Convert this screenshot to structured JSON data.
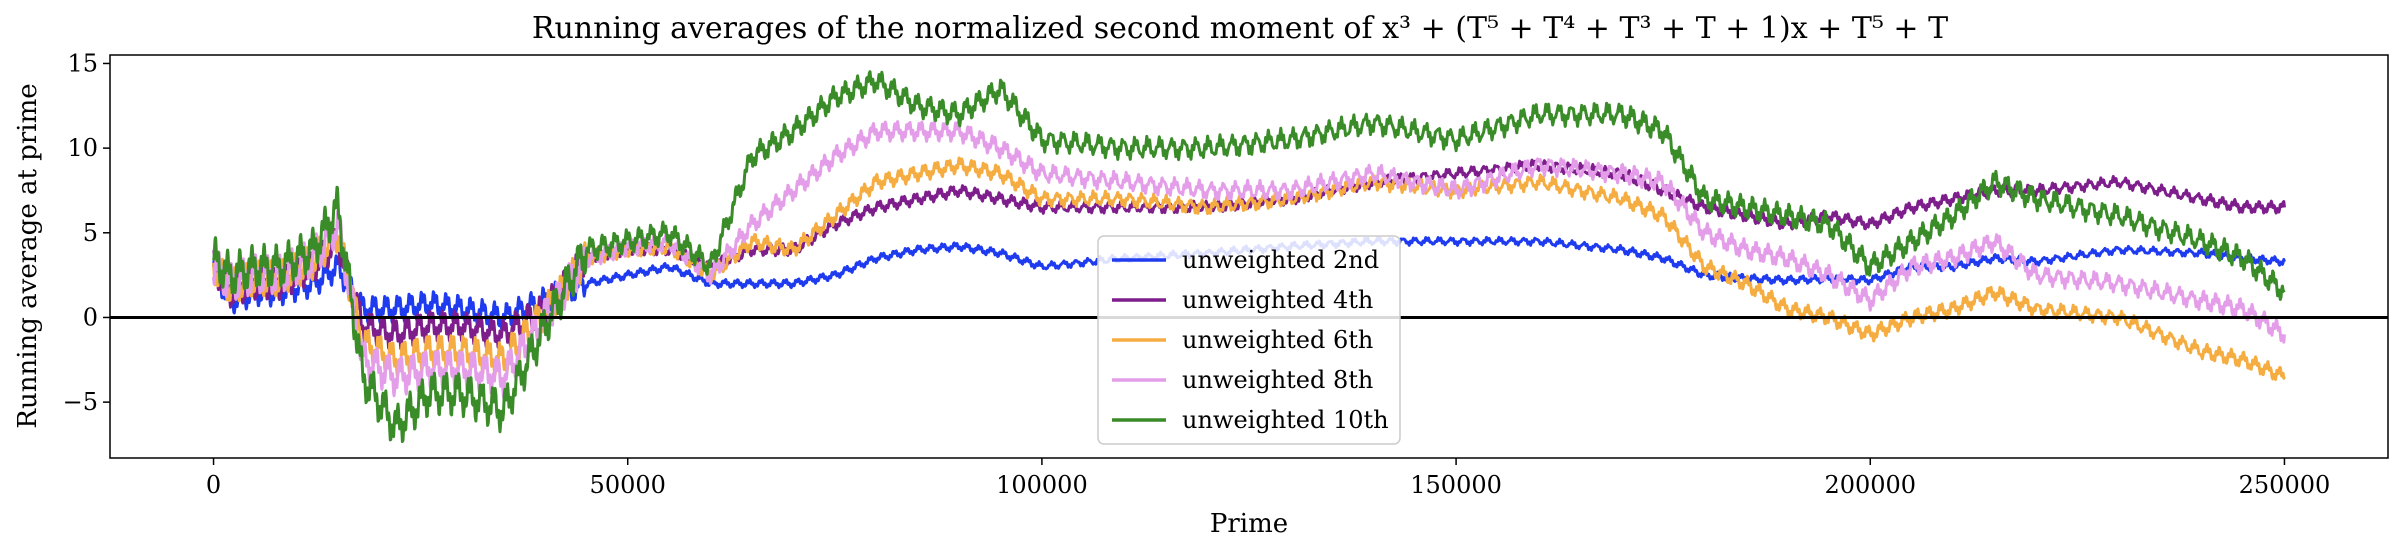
{
  "chart_data": {
    "type": "line",
    "title": "Running averages of the normalized second moment of x³ + (T⁵ + T⁴ + T³ + T + 1)x + T⁵ + T",
    "xlabel": "Prime",
    "ylabel": "Running average at prime",
    "xlim": [
      -12500,
      262500
    ],
    "ylim": [
      -8.3,
      15.5
    ],
    "xticks": [
      0,
      50000,
      100000,
      150000,
      200000,
      250000
    ],
    "xtick_labels": [
      "0",
      "50000",
      "100000",
      "150000",
      "200000",
      "250000"
    ],
    "yticks": [
      -5,
      0,
      5,
      10,
      15
    ],
    "ytick_labels": [
      "−5",
      "0",
      "5",
      "10",
      "15"
    ],
    "hline": 0,
    "legend_position": "center",
    "x": [
      0,
      2000,
      5000,
      8000,
      12000,
      15000,
      18000,
      22000,
      26000,
      30000,
      35000,
      40000,
      45000,
      50000,
      55000,
      60000,
      65000,
      70000,
      75000,
      80000,
      85000,
      90000,
      95000,
      100000,
      110000,
      120000,
      130000,
      140000,
      150000,
      160000,
      170000,
      175000,
      180000,
      185000,
      190000,
      195000,
      200000,
      205000,
      210000,
      215000,
      220000,
      230000,
      240000,
      245000,
      250000
    ],
    "series": [
      {
        "name": "unweighted 2nd",
        "color": "#1f3bef",
        "values": [
          3.0,
          1.0,
          1.5,
          1.5,
          2.0,
          3.0,
          0.5,
          0.5,
          0.8,
          0.5,
          0.0,
          1.0,
          2.0,
          2.5,
          3.0,
          2.0,
          2.0,
          2.0,
          2.5,
          3.5,
          4.0,
          4.2,
          3.8,
          3.0,
          3.5,
          3.8,
          4.2,
          4.5,
          4.5,
          4.5,
          4.0,
          3.5,
          2.5,
          2.3,
          2.2,
          2.3,
          2.2,
          3.0,
          3.0,
          3.5,
          3.3,
          4.0,
          3.8,
          3.5,
          3.3
        ]
      },
      {
        "name": "unweighted 4th",
        "color": "#7e1e8c",
        "values": [
          3.0,
          1.5,
          2.0,
          2.0,
          3.0,
          4.5,
          -0.5,
          -1.0,
          -0.5,
          -0.5,
          -1.0,
          0.5,
          3.5,
          4.0,
          4.0,
          3.0,
          4.0,
          4.0,
          5.5,
          6.5,
          7.0,
          7.5,
          7.0,
          6.5,
          6.5,
          6.5,
          7.0,
          8.0,
          8.5,
          9.0,
          8.5,
          7.5,
          6.5,
          6.0,
          5.5,
          6.0,
          5.5,
          6.5,
          7.0,
          7.5,
          7.5,
          8.0,
          7.0,
          6.5,
          6.5
        ]
      },
      {
        "name": "unweighted 6th",
        "color": "#f5ac40",
        "values": [
          3.0,
          1.8,
          2.3,
          2.3,
          3.3,
          5.0,
          -1.5,
          -2.5,
          -2.0,
          -2.0,
          -2.5,
          0.3,
          3.5,
          4.0,
          4.2,
          2.5,
          4.5,
          4.0,
          6.0,
          8.0,
          8.5,
          9.0,
          8.5,
          7.0,
          7.0,
          6.5,
          7.0,
          8.0,
          7.5,
          8.0,
          7.0,
          6.0,
          3.0,
          2.0,
          0.5,
          0.0,
          -1.0,
          0.0,
          0.5,
          1.5,
          0.5,
          0.0,
          -2.0,
          -2.5,
          -3.5
        ]
      },
      {
        "name": "unweighted 8th",
        "color": "#e49ee9",
        "values": [
          3.0,
          2.0,
          2.5,
          2.5,
          3.5,
          5.5,
          -2.5,
          -3.5,
          -3.0,
          -3.0,
          -3.5,
          0.0,
          3.5,
          4.2,
          4.5,
          2.5,
          5.5,
          7.5,
          9.5,
          11.0,
          11.0,
          11.0,
          10.0,
          8.5,
          8.0,
          7.5,
          7.5,
          8.5,
          7.5,
          9.0,
          8.5,
          8.0,
          5.0,
          4.0,
          3.5,
          2.5,
          1.0,
          3.0,
          3.5,
          4.5,
          2.5,
          2.0,
          1.0,
          0.5,
          -1.0
        ]
      },
      {
        "name": "unweighted 10th",
        "color": "#3a8c28",
        "values": [
          3.5,
          2.5,
          3.0,
          3.0,
          4.0,
          6.5,
          -3.5,
          -6.5,
          -4.5,
          -4.5,
          -5.5,
          -0.5,
          4.0,
          4.5,
          5.0,
          3.0,
          9.5,
          11.0,
          13.0,
          14.0,
          12.5,
          12.0,
          13.5,
          10.5,
          10.0,
          10.0,
          10.5,
          11.5,
          10.5,
          12.0,
          12.0,
          11.0,
          7.0,
          6.5,
          6.0,
          5.5,
          3.0,
          4.5,
          6.0,
          8.0,
          7.0,
          6.0,
          4.5,
          3.5,
          1.5
        ]
      }
    ]
  }
}
